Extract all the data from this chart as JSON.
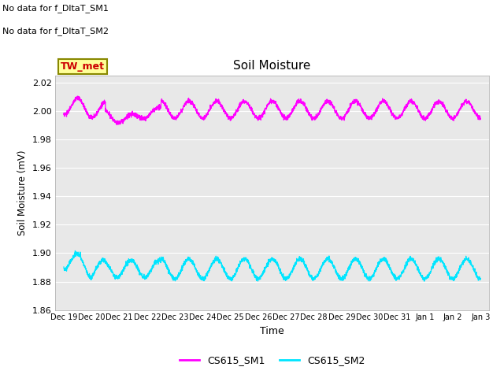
{
  "title": "Soil Moisture",
  "xlabel": "Time",
  "ylabel": "Soil Moisture (mV)",
  "ylim": [
    1.86,
    2.025
  ],
  "yticks": [
    1.86,
    1.88,
    1.9,
    1.92,
    1.94,
    1.96,
    1.98,
    2.0,
    2.02
  ],
  "background_color": "#e8e8e8",
  "line1_color": "#ff00ff",
  "line2_color": "#00e5ff",
  "legend_labels": [
    "CS615_SM1",
    "CS615_SM2"
  ],
  "no_data_text1": "No data for f_DltaT_SM1",
  "no_data_text2": "No data for f_DltaT_SM2",
  "tw_met_label": "TW_met",
  "tw_met_bg": "#ffff99",
  "tw_met_border": "#888800",
  "tw_met_text_color": "#cc0000",
  "x_tick_labels": [
    "Dec 19",
    "Dec 20",
    "Dec 21",
    "Dec 22",
    "Dec 23",
    "Dec 24",
    "Dec 25",
    "Dec 26",
    "Dec 27",
    "Dec 28",
    "Dec 29",
    "Dec 30",
    "Dec 31",
    "Jan 1",
    "Jan 2",
    "Jan 3"
  ],
  "figsize": [
    6.4,
    4.8
  ],
  "dpi": 100
}
